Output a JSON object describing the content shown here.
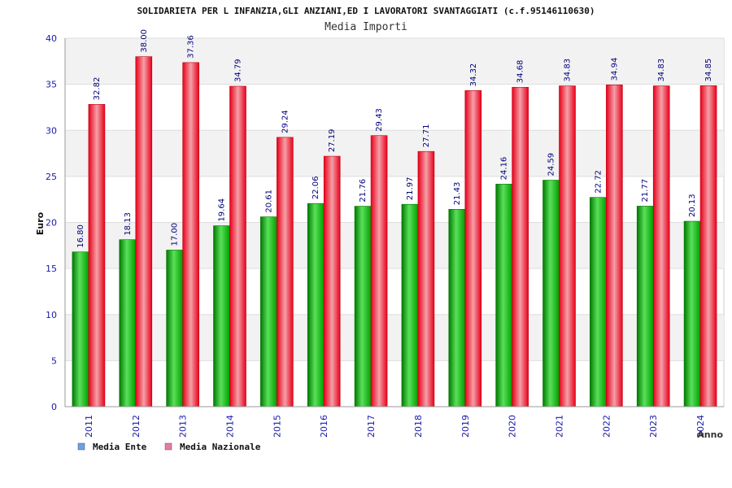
{
  "chart_data": {
    "type": "bar",
    "title": "SOLIDARIETA PER L INFANZIA,GLI ANZIANI,ED I LAVORATORI SVANTAGGIATI (c.f.95146110630)",
    "subtitle": "Media Importi",
    "xlabel": "Anno",
    "ylabel": "Euro",
    "ylim": [
      0,
      40
    ],
    "yticks": [
      0,
      5,
      10,
      15,
      20,
      25,
      30,
      35,
      40
    ],
    "grid": true,
    "legend_position": "bottom-left",
    "categories": [
      "2011",
      "2012",
      "2013",
      "2014",
      "2015",
      "2016",
      "2017",
      "2018",
      "2019",
      "2020",
      "2021",
      "2022",
      "2023",
      "2024"
    ],
    "series": [
      {
        "name": "Media Ente",
        "color": "#00b000",
        "legend_color": "#6aa0e8",
        "values": [
          16.8,
          18.13,
          17.0,
          19.64,
          20.61,
          22.06,
          21.76,
          21.97,
          21.43,
          24.16,
          24.59,
          22.72,
          21.77,
          20.13
        ],
        "labels": [
          "16.80",
          "18.13",
          "17.00",
          "19.64",
          "20.61",
          "22.06",
          "21.76",
          "21.97",
          "21.43",
          "24.16",
          "24.59",
          "22.72",
          "21.77",
          "20.13"
        ]
      },
      {
        "name": "Media Nazionale",
        "color": "#e8001a",
        "legend_color": "#e87aa8",
        "values": [
          32.82,
          38.0,
          37.36,
          34.79,
          29.24,
          27.19,
          29.43,
          27.71,
          34.32,
          34.68,
          34.83,
          34.94,
          34.83,
          34.85
        ],
        "labels": [
          "32.82",
          "38.00",
          "37.36",
          "34.79",
          "29.24",
          "27.19",
          "29.43",
          "27.71",
          "34.32",
          "34.68",
          "34.83",
          "34.94",
          "34.83",
          "34.85"
        ]
      }
    ]
  }
}
